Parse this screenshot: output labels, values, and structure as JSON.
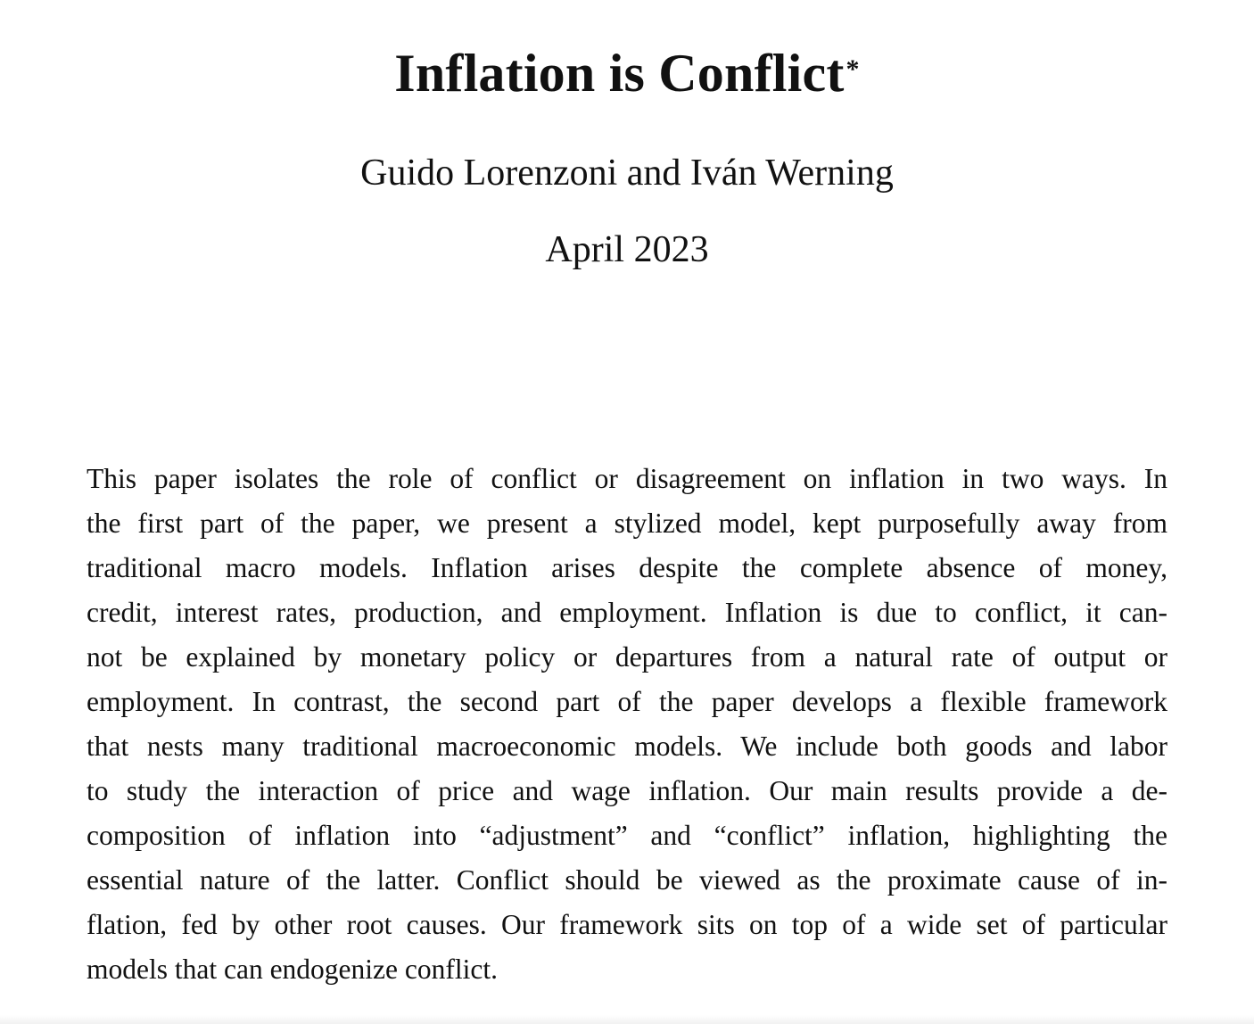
{
  "paper": {
    "title": "Inflation is Conflict",
    "title_footnote_mark": "*",
    "authors": "Guido Lorenzoni and Iván Werning",
    "date": "April 2023",
    "abstract_lines": [
      "This paper isolates the role of conflict or disagreement on inflation in two ways.  In",
      "the first part of the paper, we present a stylized model, kept purposefully away from",
      "traditional macro models.  Inflation arises despite the complete absence of money,",
      "credit, interest rates, production, and employment. Inflation is due to conflict, it can-",
      "not be explained by monetary policy or departures from a natural rate of output or",
      "employment. In contrast, the second part of the paper develops a flexible framework",
      "that nests many traditional macroeconomic models. We include both goods and labor",
      "to study the interaction of price and wage inflation.  Our main results provide a de-",
      "composition of inflation into “adjustment” and “conflict” inflation, highlighting the",
      "essential nature of the latter. Conflict should be viewed as the proximate cause of in-",
      "flation, fed by other root causes. Our framework sits on top of a wide set of particular",
      "models that can endogenize conflict."
    ]
  }
}
